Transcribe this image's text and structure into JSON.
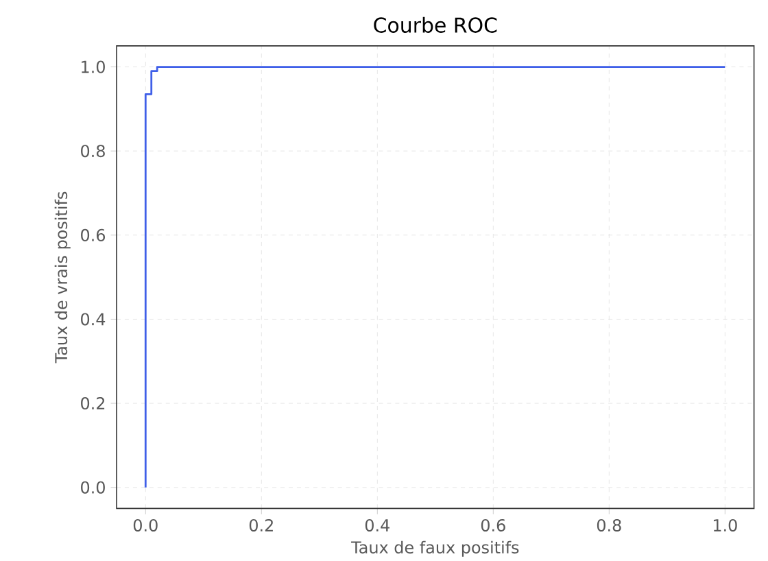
{
  "chart_data": {
    "type": "line",
    "title": "Courbe ROC",
    "xlabel": "Taux de faux positifs",
    "ylabel": "Taux de vrais positifs",
    "x": [
      0,
      0,
      0.01,
      0.01,
      0.02,
      0.02,
      1
    ],
    "values": [
      0,
      0.935,
      0.935,
      0.99,
      0.99,
      1,
      1
    ],
    "color": "#3f5fe8",
    "xlim": [
      -0.05,
      1.05
    ],
    "ylim": [
      -0.05,
      1.05
    ],
    "xticks": [
      {
        "value": 0,
        "label": "0.0"
      },
      0.2,
      0.4,
      0.6,
      0.8,
      {
        "value": 1,
        "label": "1.0"
      }
    ],
    "yticks": [
      {
        "value": 0,
        "label": "0.0"
      },
      0.2,
      0.4,
      0.6,
      0.8,
      {
        "value": 1,
        "label": "1.0"
      }
    ],
    "grid": true,
    "marker": "none",
    "line_style": "solid"
  }
}
